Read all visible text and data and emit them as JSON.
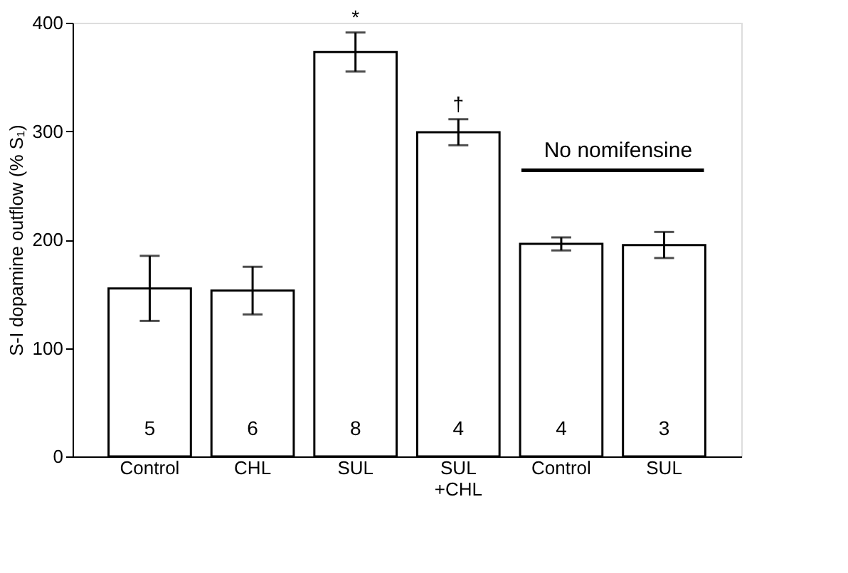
{
  "chart_data": {
    "type": "bar",
    "ylabel": "S-I dopamine outflow (% S₁)",
    "categories": [
      "Control",
      "CHL",
      "SUL",
      "SUL +CHL",
      "Control",
      "SUL"
    ],
    "values": [
      155,
      153,
      373,
      299,
      196,
      195
    ],
    "errors": [
      30,
      22,
      18,
      12,
      6,
      12
    ],
    "color": "#ffffff",
    "ylim": [
      0,
      400
    ],
    "yticks": [
      0,
      100,
      200,
      300,
      400
    ],
    "grid": false,
    "annotations": [
      "5",
      "6",
      "8",
      "4",
      "4",
      "3",
      {
        "text": "*",
        "x": "SUL",
        "y": 391
      },
      {
        "text": "†",
        "x": "SUL +CHL",
        "y": 311
      },
      "No nomifensine"
    ]
  }
}
